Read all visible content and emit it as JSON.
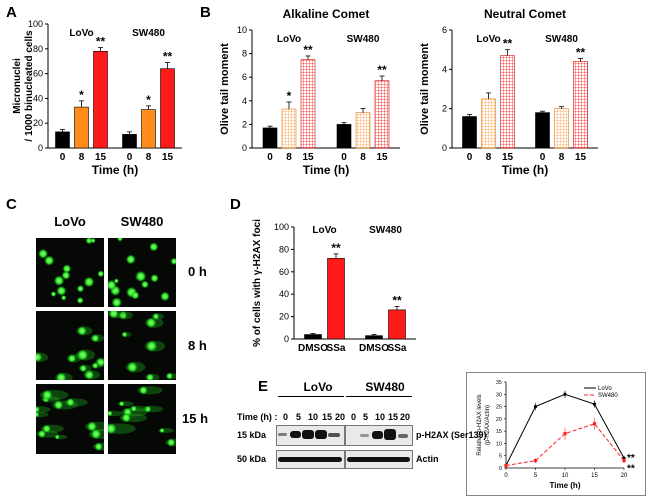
{
  "panels": {
    "A": "A",
    "B": "B",
    "C": "C",
    "D": "D",
    "E": "E"
  },
  "colors": {
    "black": "#000000",
    "orange": "#ff8c1a",
    "red": "#ff1a1a",
    "grid_pink": "#ffd0d0",
    "grid_orange": "#ffd9a8",
    "gfp": "#2cff2c"
  },
  "chart_data": [
    {
      "id": "A",
      "type": "bar",
      "ylabel": "Micronuclei / 1000 binucleated cells",
      "ylabel_lines": [
        "Micronuclei",
        "/ 1000 binucleated cells"
      ],
      "xlabel": "Time (h)",
      "ylim": [
        0,
        100
      ],
      "yticks": [
        "0",
        "20",
        "40",
        "60",
        "80",
        "100"
      ],
      "groups": [
        {
          "name": "LoVo",
          "categories": [
            "0",
            "8",
            "15"
          ],
          "values": [
            13,
            33,
            78
          ],
          "errors": [
            2,
            5,
            3
          ],
          "sig": [
            "",
            "*",
            "**"
          ]
        },
        {
          "name": "SW480",
          "categories": [
            "0",
            "8",
            "15"
          ],
          "values": [
            11,
            31,
            64
          ],
          "errors": [
            2,
            3,
            5
          ],
          "sig": [
            "",
            "*",
            "**"
          ]
        }
      ]
    },
    {
      "id": "B1",
      "type": "bar",
      "title": "Alkaline Comet",
      "ylabel": "Olive tail moment",
      "xlabel": "Time (h)",
      "ylim": [
        0,
        10
      ],
      "yticks": [
        "0",
        "2",
        "4",
        "6",
        "8",
        "10"
      ],
      "groups": [
        {
          "name": "LoVo",
          "categories": [
            "0",
            "8",
            "15"
          ],
          "values": [
            1.7,
            3.3,
            7.5
          ],
          "errors": [
            0.15,
            0.6,
            0.3
          ],
          "sig": [
            "",
            "*",
            "**"
          ]
        },
        {
          "name": "SW480",
          "categories": [
            "0",
            "8",
            "15"
          ],
          "values": [
            2.0,
            3.0,
            5.7
          ],
          "errors": [
            0.15,
            0.35,
            0.4
          ],
          "sig": [
            "",
            "",
            "**"
          ]
        }
      ]
    },
    {
      "id": "B2",
      "type": "bar",
      "title": "Neutral Comet",
      "ylabel": "Olive tail moment",
      "xlabel": "Time (h)",
      "ylim": [
        0,
        6
      ],
      "yticks": [
        "0",
        "2",
        "4",
        "6"
      ],
      "groups": [
        {
          "name": "LoVo",
          "categories": [
            "0",
            "8",
            "15"
          ],
          "values": [
            1.6,
            2.5,
            4.7
          ],
          "errors": [
            0.1,
            0.3,
            0.3
          ],
          "sig": [
            "",
            "",
            "**"
          ]
        },
        {
          "name": "SW480",
          "categories": [
            "0",
            "8",
            "15"
          ],
          "values": [
            1.8,
            2.0,
            4.4
          ],
          "errors": [
            0.07,
            0.1,
            0.15
          ],
          "sig": [
            "",
            "",
            "**"
          ]
        }
      ]
    },
    {
      "id": "D",
      "type": "bar",
      "ylabel": "% of cells with γ-H2AX foci",
      "ylim": [
        0,
        100
      ],
      "yticks": [
        "0",
        "20",
        "40",
        "60",
        "80",
        "100"
      ],
      "groups": [
        {
          "name": "LoVo",
          "categories": [
            "DMSO",
            "SSa"
          ],
          "values": [
            4,
            72
          ],
          "errors": [
            1,
            4
          ],
          "sig": [
            "",
            "**"
          ]
        },
        {
          "name": "SW480",
          "categories": [
            "DMSO",
            "SSa"
          ],
          "values": [
            3,
            26
          ],
          "errors": [
            1,
            3
          ],
          "sig": [
            "",
            "**"
          ]
        }
      ]
    },
    {
      "id": "E-line",
      "type": "line",
      "ylabel": "Relative p-H2AX levels (p-H2AX/Actin)",
      "ylabel_lines": [
        "Relative p-H2AX levels",
        "(p-H2AX/Actin)"
      ],
      "xlabel": "Time (h)",
      "xlim": [
        0,
        20
      ],
      "ylim": [
        0,
        35
      ],
      "xticks": [
        "0",
        "5",
        "10",
        "15",
        "20"
      ],
      "yticks": [
        "0",
        "5",
        "10",
        "15",
        "20",
        "25",
        "30",
        "35"
      ],
      "x": [
        0,
        5,
        10,
        15,
        20
      ],
      "series": [
        {
          "name": "LoVo",
          "values": [
            1,
            25,
            30,
            26,
            4
          ],
          "errors": [
            0.5,
            1.5,
            1.5,
            1.5,
            1
          ],
          "style": "solid"
        },
        {
          "name": "SW480",
          "values": [
            1,
            3,
            14,
            18,
            3
          ],
          "errors": [
            0.5,
            1,
            2.5,
            2.5,
            1
          ],
          "style": "dashed"
        }
      ],
      "sig": "**"
    }
  ],
  "comet": {
    "columns": [
      "LoVo",
      "SW480"
    ],
    "rows": [
      "0 h",
      "8 h",
      "15 h"
    ]
  },
  "blot": {
    "lines": [
      "LoVo",
      "SW480"
    ],
    "time_label": "Time (h) :",
    "times": [
      "0",
      "5",
      "10",
      "15",
      "20"
    ],
    "markers": [
      "15 kDa",
      "50 kDa"
    ],
    "proteins": [
      "p-H2AX (Ser139)",
      "Actin"
    ]
  }
}
